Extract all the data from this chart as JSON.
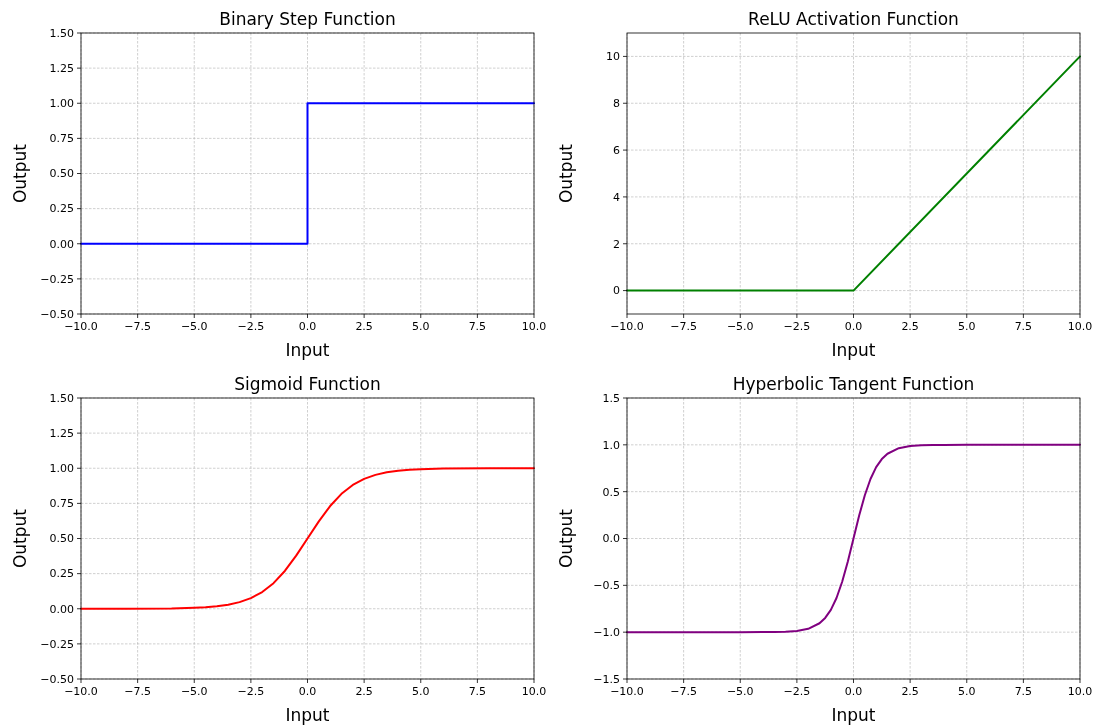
{
  "chart_data": [
    {
      "type": "line",
      "title": "Binary Step Function",
      "xlabel": "Input",
      "ylabel": "Output",
      "x": [
        -10,
        0,
        0,
        10
      ],
      "series": [
        {
          "color": "#0000ff",
          "values": [
            0,
            0,
            1,
            1
          ]
        }
      ],
      "xlim": [
        -10,
        10
      ],
      "xticks": [
        {
          "value": -10,
          "label": "−10.0"
        },
        {
          "value": -7.5,
          "label": "−7.5"
        },
        {
          "value": -5,
          "label": "−5.0"
        },
        {
          "value": -2.5,
          "label": "−2.5"
        },
        {
          "value": 0,
          "label": "0.0"
        },
        {
          "value": 2.5,
          "label": "2.5"
        },
        {
          "value": 5,
          "label": "5.0"
        },
        {
          "value": 7.5,
          "label": "7.5"
        },
        {
          "value": 10,
          "label": "10.0"
        }
      ],
      "ylim": [
        -0.5,
        1.5
      ],
      "yticks": [
        {
          "value": -0.5,
          "label": "−0.50"
        },
        {
          "value": -0.25,
          "label": "−0.25"
        },
        {
          "value": 0,
          "label": "0.00"
        },
        {
          "value": 0.25,
          "label": "0.25"
        },
        {
          "value": 0.5,
          "label": "0.50"
        },
        {
          "value": 0.75,
          "label": "0.75"
        },
        {
          "value": 1,
          "label": "1.00"
        },
        {
          "value": 1.25,
          "label": "1.25"
        },
        {
          "value": 1.5,
          "label": "1.50"
        }
      ],
      "grid": true
    },
    {
      "type": "line",
      "title": "ReLU Activation Function",
      "xlabel": "Input",
      "ylabel": "Output",
      "x": [
        -10,
        0,
        10
      ],
      "series": [
        {
          "color": "#008000",
          "values": [
            0,
            0,
            10
          ]
        }
      ],
      "xlim": [
        -10,
        10
      ],
      "xticks": [
        {
          "value": -10,
          "label": "−10.0"
        },
        {
          "value": -7.5,
          "label": "−7.5"
        },
        {
          "value": -5,
          "label": "−5.0"
        },
        {
          "value": -2.5,
          "label": "−2.5"
        },
        {
          "value": 0,
          "label": "0.0"
        },
        {
          "value": 2.5,
          "label": "2.5"
        },
        {
          "value": 5,
          "label": "5.0"
        },
        {
          "value": 7.5,
          "label": "7.5"
        },
        {
          "value": 10,
          "label": "10.0"
        }
      ],
      "ylim": [
        -1,
        11
      ],
      "yticks": [
        0,
        2,
        4,
        6,
        8,
        10
      ],
      "grid": true
    },
    {
      "type": "line",
      "title": "Sigmoid Function",
      "xlabel": "Input",
      "ylabel": "Output",
      "x": [
        -10,
        -8,
        -6,
        -5,
        -4.5,
        -4,
        -3.5,
        -3,
        -2.5,
        -2,
        -1.5,
        -1,
        -0.5,
        0,
        0.5,
        1,
        1.5,
        2,
        2.5,
        3,
        3.5,
        4,
        4.5,
        5,
        6,
        8,
        10
      ],
      "series": [
        {
          "color": "#ff0000",
          "values": [
            0,
            0,
            0.002,
            0.007,
            0.011,
            0.018,
            0.029,
            0.047,
            0.076,
            0.119,
            0.182,
            0.269,
            0.378,
            0.5,
            0.622,
            0.731,
            0.818,
            0.881,
            0.924,
            0.953,
            0.971,
            0.982,
            0.989,
            0.993,
            0.998,
            1,
            1
          ]
        }
      ],
      "xlim": [
        -10,
        10
      ],
      "xticks": [
        {
          "value": -10,
          "label": "−10.0"
        },
        {
          "value": -7.5,
          "label": "−7.5"
        },
        {
          "value": -5,
          "label": "−5.0"
        },
        {
          "value": -2.5,
          "label": "−2.5"
        },
        {
          "value": 0,
          "label": "0.0"
        },
        {
          "value": 2.5,
          "label": "2.5"
        },
        {
          "value": 5,
          "label": "5.0"
        },
        {
          "value": 7.5,
          "label": "7.5"
        },
        {
          "value": 10,
          "label": "10.0"
        }
      ],
      "ylim": [
        -0.5,
        1.5
      ],
      "yticks": [
        {
          "value": -0.5,
          "label": "−0.50"
        },
        {
          "value": -0.25,
          "label": "−0.25"
        },
        {
          "value": 0,
          "label": "0.00"
        },
        {
          "value": 0.25,
          "label": "0.25"
        },
        {
          "value": 0.5,
          "label": "0.50"
        },
        {
          "value": 0.75,
          "label": "0.75"
        },
        {
          "value": 1,
          "label": "1.00"
        },
        {
          "value": 1.25,
          "label": "1.25"
        },
        {
          "value": 1.5,
          "label": "1.50"
        }
      ],
      "grid": true
    },
    {
      "type": "line",
      "title": "Hyperbolic Tangent Function",
      "xlabel": "Input",
      "ylabel": "Output",
      "x": [
        -10,
        -5,
        -4,
        -3.5,
        -3,
        -2.5,
        -2,
        -1.5,
        -1.25,
        -1,
        -0.75,
        -0.5,
        -0.25,
        0,
        0.25,
        0.5,
        0.75,
        1,
        1.25,
        1.5,
        2,
        2.5,
        3,
        3.5,
        4,
        5,
        10
      ],
      "series": [
        {
          "color": "#800080",
          "values": [
            -1,
            -1,
            -0.999,
            -0.998,
            -0.995,
            -0.987,
            -0.964,
            -0.905,
            -0.848,
            -0.762,
            -0.635,
            -0.462,
            -0.245,
            0,
            0.245,
            0.462,
            0.635,
            0.762,
            0.848,
            0.905,
            0.964,
            0.987,
            0.995,
            0.998,
            0.999,
            1,
            1
          ]
        }
      ],
      "xlim": [
        -10,
        10
      ],
      "xticks": [
        {
          "value": -10,
          "label": "−10.0"
        },
        {
          "value": -7.5,
          "label": "−7.5"
        },
        {
          "value": -5,
          "label": "−5.0"
        },
        {
          "value": -2.5,
          "label": "−2.5"
        },
        {
          "value": 0,
          "label": "0.0"
        },
        {
          "value": 2.5,
          "label": "2.5"
        },
        {
          "value": 5,
          "label": "5.0"
        },
        {
          "value": 7.5,
          "label": "7.5"
        },
        {
          "value": 10,
          "label": "10.0"
        }
      ],
      "ylim": [
        -1.5,
        1.5
      ],
      "yticks": [
        {
          "value": -1.5,
          "label": "−1.5"
        },
        {
          "value": -1,
          "label": "−1.0"
        },
        {
          "value": -0.5,
          "label": "−0.5"
        },
        {
          "value": 0,
          "label": "0.0"
        },
        {
          "value": 0.5,
          "label": "0.5"
        },
        {
          "value": 1,
          "label": "1.0"
        },
        {
          "value": 1.5,
          "label": "1.5"
        }
      ],
      "grid": true
    }
  ]
}
